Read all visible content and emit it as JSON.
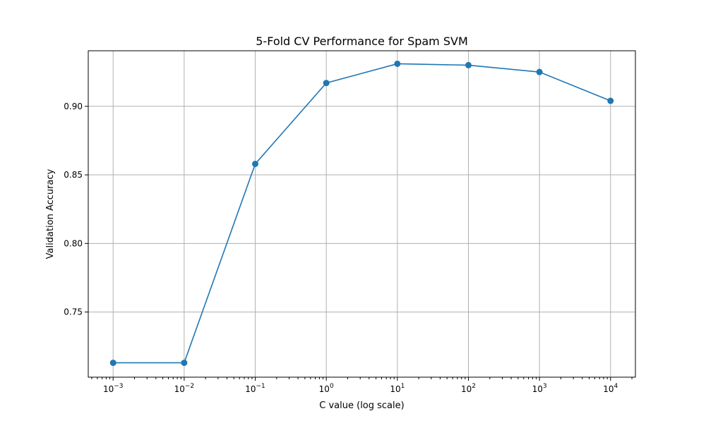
{
  "chart_data": {
    "type": "line",
    "title": "5-Fold CV Performance for Spam SVM",
    "xlabel": "C value (log scale)",
    "ylabel": "Validation Accuracy",
    "xscale": "log",
    "x": [
      0.001,
      0.01,
      0.1,
      1,
      10,
      100,
      1000,
      10000
    ],
    "xtick_labels": [
      {
        "base": "10",
        "exp": "−3"
      },
      {
        "base": "10",
        "exp": "−2"
      },
      {
        "base": "10",
        "exp": "−1"
      },
      {
        "base": "10",
        "exp": "0"
      },
      {
        "base": "10",
        "exp": "1"
      },
      {
        "base": "10",
        "exp": "2"
      },
      {
        "base": "10",
        "exp": "3"
      },
      {
        "base": "10",
        "exp": "4"
      }
    ],
    "series": [
      {
        "values": [
          0.713,
          0.713,
          0.858,
          0.917,
          0.931,
          0.93,
          0.925,
          0.904
        ],
        "color": "#1f77b4",
        "marker": "circle"
      }
    ],
    "ylim": [
      0.7025,
      0.9405
    ],
    "yticks": [
      0.75,
      0.8,
      0.85,
      0.9
    ],
    "ytick_labels": [
      "0.75",
      "0.80",
      "0.85",
      "0.90"
    ],
    "xlim_log10": [
      -3.35,
      4.35
    ],
    "grid": true
  }
}
